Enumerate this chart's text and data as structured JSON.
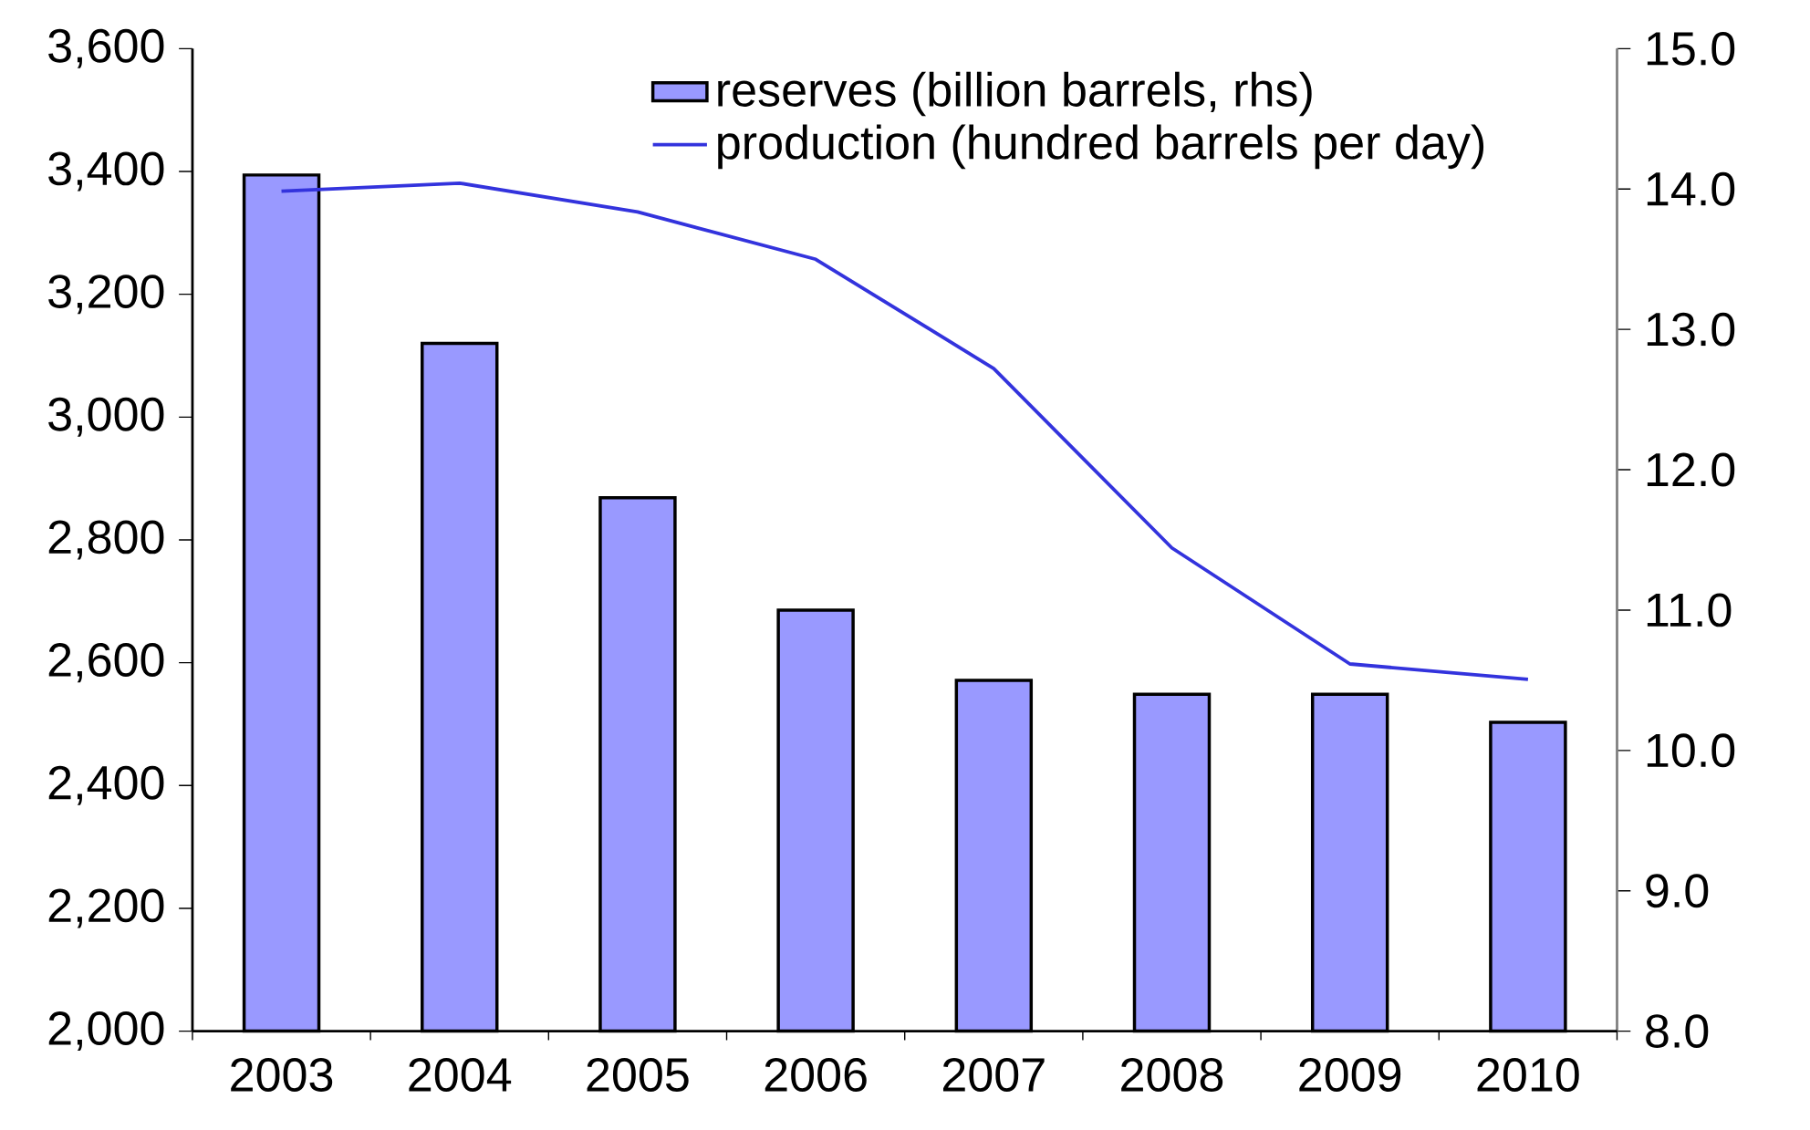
{
  "chart_data": {
    "type": "bar",
    "categories": [
      "2003",
      "2004",
      "2005",
      "2006",
      "2007",
      "2008",
      "2009",
      "2010"
    ],
    "series": [
      {
        "name": "reserves (billion barrels, rhs)",
        "axis": "y2",
        "color": "#9999ff",
        "values": [
          14.1,
          12.9,
          11.8,
          11.0,
          10.5,
          10.4,
          10.4,
          10.2
        ]
      },
      {
        "name": "production (hundred barrels per day)",
        "type": "line",
        "color": "#3333dd",
        "values": [
          3368,
          3381,
          3334,
          3257,
          3079,
          2787,
          2598,
          2573
        ]
      }
    ],
    "ylim": [
      2000,
      3600
    ],
    "yticks": [
      {
        "value": 2000,
        "label": "2,000"
      },
      {
        "value": 2200,
        "label": "2,200"
      },
      {
        "value": 2400,
        "label": "2,400"
      },
      {
        "value": 2600,
        "label": "2,600"
      },
      {
        "value": 2800,
        "label": "2,800"
      },
      {
        "value": 3000,
        "label": "3,000"
      },
      {
        "value": 3200,
        "label": "3,200"
      },
      {
        "value": 3400,
        "label": "3,400"
      },
      {
        "value": 3600,
        "label": "3,600"
      }
    ],
    "y2lim": [
      8,
      15
    ],
    "y2ticks": [
      {
        "value": 8,
        "label": "8.0"
      },
      {
        "value": 9,
        "label": "9.0"
      },
      {
        "value": 10,
        "label": "10.0"
      },
      {
        "value": 11,
        "label": "11.0"
      },
      {
        "value": 12,
        "label": "12.0"
      },
      {
        "value": 13,
        "label": "13.0"
      },
      {
        "value": 14,
        "label": "14.0"
      },
      {
        "value": 15,
        "label": "15.0"
      }
    ],
    "legend": "top right"
  }
}
